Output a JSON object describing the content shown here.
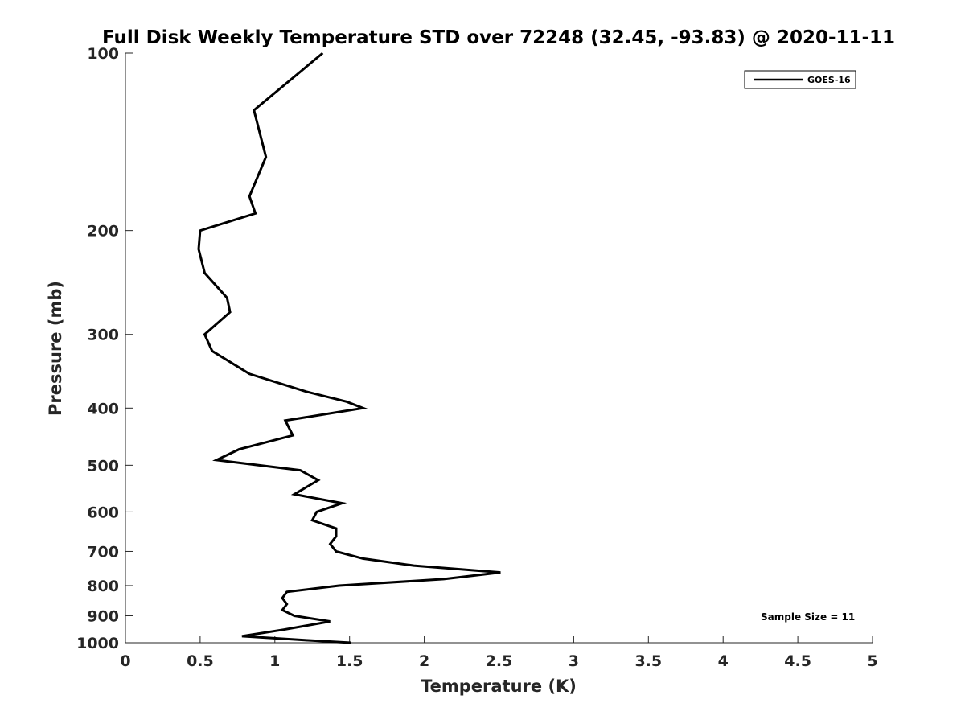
{
  "chart_data": {
    "type": "line",
    "title": "Full Disk Weekly Temperature STD over 72248 (32.45, -93.83) @ 2020-11-11",
    "xlabel": "Temperature (K)",
    "ylabel": "Pressure (mb)",
    "xlim": [
      0,
      5
    ],
    "ylim": [
      100,
      1000
    ],
    "y_scale": "log",
    "y_reversed": true,
    "x_ticks": [
      "0",
      "0.5",
      "1",
      "1.5",
      "2",
      "2.5",
      "3",
      "3.5",
      "4",
      "4.5",
      "5"
    ],
    "y_ticks": [
      "100",
      "200",
      "300",
      "400",
      "500",
      "600",
      "700",
      "800",
      "900",
      "1000"
    ],
    "grid": false,
    "legend_position": "top-right",
    "annotation": "Sample Size = 11",
    "series": [
      {
        "name": "GOES-16",
        "color": "#000000",
        "points": [
          [
            1.32,
            100
          ],
          [
            0.86,
            125
          ],
          [
            0.94,
            150
          ],
          [
            0.83,
            175
          ],
          [
            0.87,
            187
          ],
          [
            0.5,
            200
          ],
          [
            0.49,
            215
          ],
          [
            0.53,
            236
          ],
          [
            0.68,
            260
          ],
          [
            0.7,
            275
          ],
          [
            0.53,
            300
          ],
          [
            0.58,
            320
          ],
          [
            0.83,
            350
          ],
          [
            1.21,
            375
          ],
          [
            1.48,
            390
          ],
          [
            1.59,
            400
          ],
          [
            1.07,
            420
          ],
          [
            1.12,
            445
          ],
          [
            0.76,
            470
          ],
          [
            0.61,
            490
          ],
          [
            1.17,
            510
          ],
          [
            1.29,
            530
          ],
          [
            1.13,
            560
          ],
          [
            1.45,
            580
          ],
          [
            1.28,
            600
          ],
          [
            1.25,
            620
          ],
          [
            1.41,
            640
          ],
          [
            1.41,
            660
          ],
          [
            1.37,
            680
          ],
          [
            1.41,
            700
          ],
          [
            1.59,
            720
          ],
          [
            1.93,
            740
          ],
          [
            2.51,
            760
          ],
          [
            2.13,
            780
          ],
          [
            1.43,
            800
          ],
          [
            1.08,
            820
          ],
          [
            1.05,
            840
          ],
          [
            1.08,
            860
          ],
          [
            1.05,
            880
          ],
          [
            1.13,
            900
          ],
          [
            1.37,
            920
          ],
          [
            1.06,
            950
          ],
          [
            0.78,
            975
          ],
          [
            1.2,
            990
          ],
          [
            1.51,
            1000
          ]
        ]
      }
    ]
  }
}
